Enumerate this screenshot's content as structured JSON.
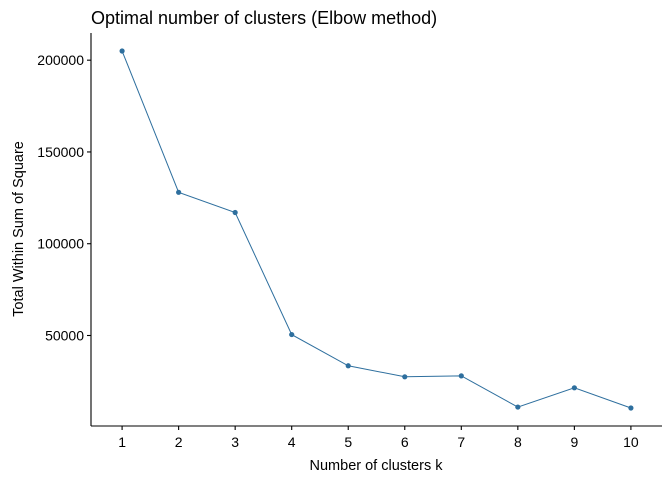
{
  "chart_data": {
    "type": "line",
    "title": "Optimal number of clusters (Elbow method)",
    "xlabel": "Number of clusters k",
    "ylabel": "Total Within Sum of Square",
    "x": [
      1,
      2,
      3,
      4,
      5,
      6,
      7,
      8,
      9,
      10
    ],
    "series": [
      {
        "values": [
          205000,
          128000,
          117000,
          50500,
          33500,
          27500,
          28000,
          11000,
          21500,
          10500
        ]
      }
    ],
    "x_ticks": [
      "1",
      "2",
      "3",
      "4",
      "5",
      "6",
      "7",
      "8",
      "9",
      "10"
    ],
    "y_ticks": [
      50000,
      100000,
      150000,
      200000
    ],
    "y_tick_labels": [
      "50000",
      "100000",
      "150000",
      "200000"
    ],
    "xlim": [
      0.45,
      10.55
    ],
    "ylim": [
      690,
      214810
    ],
    "grid": false,
    "legend": "none",
    "colors": {
      "series": "#2E6F9E",
      "point": "#2E6F9E"
    }
  }
}
